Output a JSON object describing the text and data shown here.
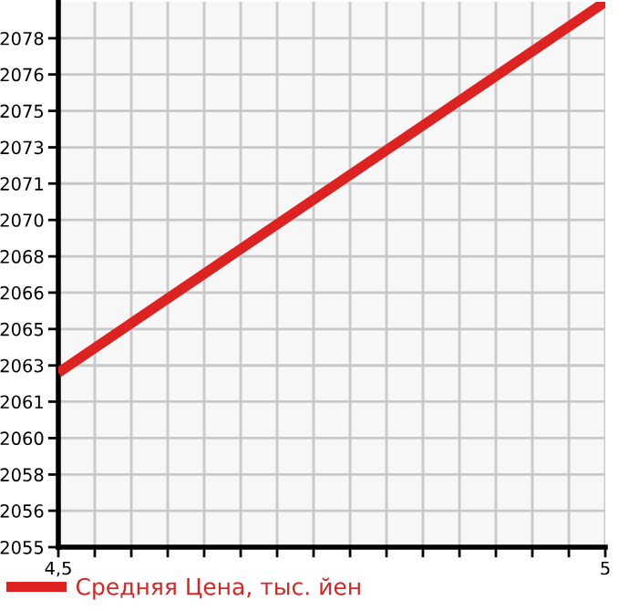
{
  "chart_data": {
    "type": "line",
    "x": [
      4.5,
      5
    ],
    "series": [
      {
        "name": "Средняя Цена, тыс. йен",
        "color": "#dd2222",
        "values": [
          2062.7,
          2079.7
        ]
      }
    ],
    "xlim": [
      4.5,
      5
    ],
    "xticks": [
      {
        "value": 4.5,
        "label": "4,5"
      },
      {
        "value": 4.5333,
        "label": null
      },
      {
        "value": 4.5667,
        "label": null
      },
      {
        "value": 4.6,
        "label": null
      },
      {
        "value": 4.6333,
        "label": null
      },
      {
        "value": 4.6667,
        "label": null
      },
      {
        "value": 4.7,
        "label": null
      },
      {
        "value": 4.7333,
        "label": null
      },
      {
        "value": 4.7667,
        "label": null
      },
      {
        "value": 4.8,
        "label": null
      },
      {
        "value": 4.8333,
        "label": null
      },
      {
        "value": 4.8667,
        "label": null
      },
      {
        "value": 4.9,
        "label": null
      },
      {
        "value": 4.9333,
        "label": null
      },
      {
        "value": 4.9667,
        "label": null
      },
      5
    ],
    "ylim": [
      2054.7,
      2079.7
    ],
    "yticks": [
      {
        "value": 2054.7,
        "label": "2055"
      },
      {
        "value": 2056.37,
        "label": "2056"
      },
      {
        "value": 2058.03,
        "label": "2058"
      },
      {
        "value": 2059.7,
        "label": "2060"
      },
      {
        "value": 2061.37,
        "label": "2061"
      },
      {
        "value": 2063.03,
        "label": "2063"
      },
      {
        "value": 2064.7,
        "label": "2065"
      },
      {
        "value": 2066.37,
        "label": "2066"
      },
      {
        "value": 2068.03,
        "label": "2068"
      },
      {
        "value": 2069.7,
        "label": "2070"
      },
      {
        "value": 2071.37,
        "label": "2071"
      },
      {
        "value": 2073.03,
        "label": "2073"
      },
      {
        "value": 2074.7,
        "label": "2075"
      },
      {
        "value": 2076.37,
        "label": "2076"
      },
      {
        "value": 2078.03,
        "label": "2078"
      }
    ],
    "grid": true,
    "legend": "bottom left",
    "marker": "none",
    "line_style": "solid"
  }
}
